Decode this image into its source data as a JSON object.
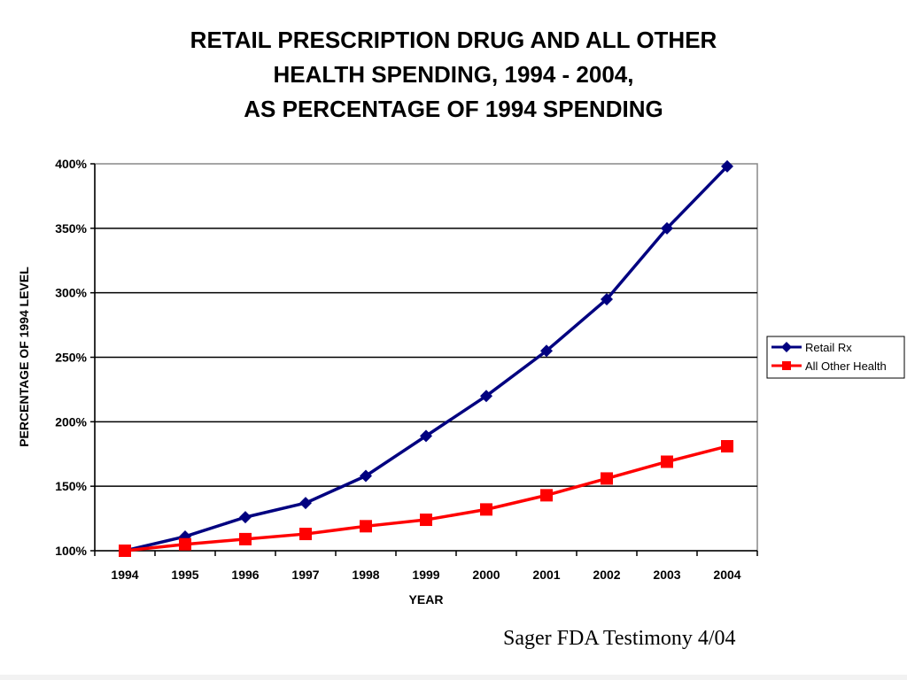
{
  "slide": {
    "title_lines": [
      "RETAIL PRESCRIPTION DRUG AND ALL OTHER",
      "HEALTH SPENDING, 1994 - 2004,",
      "AS PERCENTAGE OF 1994 SPENDING"
    ],
    "source_note": "Sager FDA Testimony 4/04"
  },
  "chart_data": {
    "type": "line",
    "title": "",
    "xlabel": "YEAR",
    "ylabel": "PERCENTAGE OF 1994 LEVEL",
    "categories": [
      "1994",
      "1995",
      "1996",
      "1997",
      "1998",
      "1999",
      "2000",
      "2001",
      "2002",
      "2003",
      "2004"
    ],
    "ylim": [
      100,
      400
    ],
    "y_ticks": [
      100,
      150,
      200,
      250,
      300,
      350,
      400
    ],
    "y_tick_labels": [
      "100%",
      "150%",
      "200%",
      "250%",
      "300%",
      "350%",
      "400%"
    ],
    "grid": "horizontal",
    "legend_position": "right",
    "series": [
      {
        "name": "Retail Rx",
        "color": "#000080",
        "marker": "diamond",
        "values": [
          100,
          111,
          126,
          137,
          158,
          189,
          220,
          255,
          295,
          350,
          398
        ]
      },
      {
        "name": "All Other Health",
        "color": "#ff0000",
        "marker": "square",
        "values": [
          100,
          105,
          109,
          113,
          119,
          124,
          132,
          143,
          156,
          169,
          181
        ]
      }
    ]
  }
}
